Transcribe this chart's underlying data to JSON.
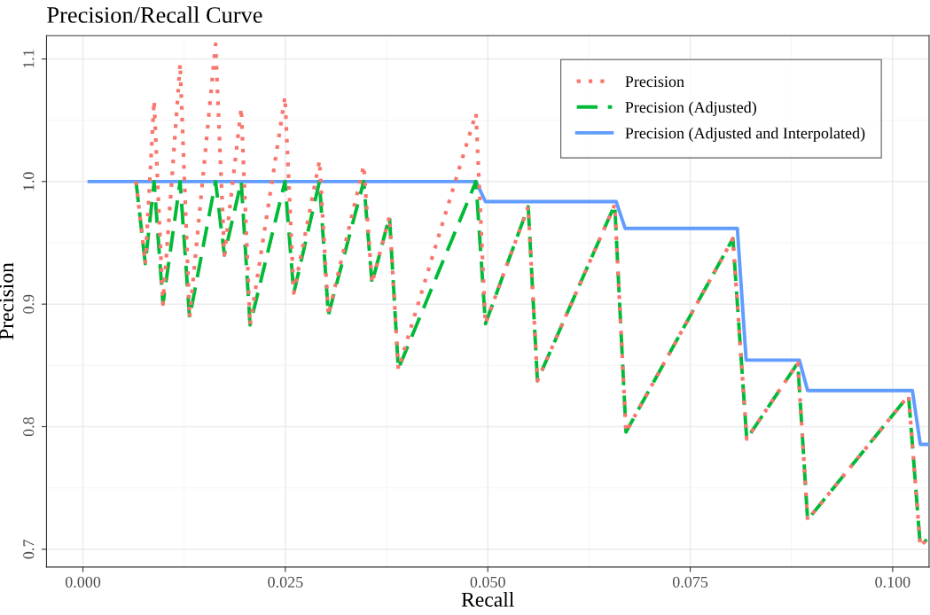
{
  "chart_data": {
    "type": "line",
    "title": "Precision/Recall Curve",
    "xlabel": "Recall",
    "ylabel": "Precision",
    "xlim": [
      -0.0045,
      0.1045
    ],
    "ylim": [
      0.6855,
      1.119
    ],
    "xticks": [
      {
        "value": 0,
        "label": "0.000"
      },
      {
        "value": 0.025,
        "label": "0.025"
      },
      {
        "value": 0.05,
        "label": "0.050"
      },
      {
        "value": 0.075,
        "label": "0.075"
      },
      {
        "value": 0.1,
        "label": "0.100"
      }
    ],
    "yticks": [
      0.7,
      0.8,
      0.9,
      {
        "value": 1,
        "label": "1.0"
      },
      1.1
    ],
    "grid": true,
    "legend": "top right",
    "marker": "none",
    "series": [
      {
        "name": "Precision",
        "color": "#f8766d",
        "line_style": "dotted",
        "x": [
          0.00656,
          0.0077,
          0.00879,
          0.00988,
          0.012,
          0.01317,
          0.01638,
          0.01747,
          0.01955,
          0.02064,
          0.02495,
          0.02604,
          0.02921,
          0.03031,
          0.03468,
          0.0357,
          0.03786,
          0.03895,
          0.04854,
          0.04971,
          0.05499,
          0.05613,
          0.06568,
          0.06707,
          0.08027,
          0.08198,
          0.08829,
          0.0895,
          0.10197,
          0.10342,
          0.1042
        ],
        "values": [
          1.0,
          0.933,
          1.066,
          0.9,
          1.096,
          0.889,
          1.112,
          0.94,
          1.06,
          0.883,
          1.069,
          0.909,
          1.017,
          0.891,
          1.013,
          0.917,
          0.9715,
          0.847,
          1.0556,
          0.884,
          0.9795,
          0.8375,
          0.981,
          0.7957,
          0.9534,
          0.79,
          0.852,
          0.724,
          0.8254,
          0.7022,
          0.708
        ]
      },
      {
        "name": "Precision (Adjusted)",
        "color": "#00ba38",
        "line_style": "dashed",
        "x": [
          0.00656,
          0.0077,
          0.00879,
          0.00988,
          0.012,
          0.01317,
          0.01638,
          0.01747,
          0.01955,
          0.02064,
          0.02495,
          0.02604,
          0.02921,
          0.03031,
          0.03468,
          0.0357,
          0.03786,
          0.03895,
          0.04854,
          0.04971,
          0.05499,
          0.05613,
          0.06568,
          0.06707,
          0.08027,
          0.08198,
          0.08829,
          0.0895,
          0.10197,
          0.10342,
          0.1042
        ],
        "values": [
          1.0,
          0.933,
          1.0,
          0.9,
          1.0,
          0.889,
          1.0,
          0.94,
          1.0,
          0.883,
          1.0,
          0.909,
          1.0,
          0.891,
          1.0,
          0.917,
          0.9715,
          0.847,
          1.0,
          0.884,
          0.9795,
          0.8375,
          0.981,
          0.7957,
          0.9534,
          0.79,
          0.852,
          0.724,
          0.8254,
          0.7022,
          0.708
        ]
      },
      {
        "name": "Precision (Adjusted and Interpolated)",
        "color": "#619cff",
        "line_style": "solid",
        "x": [
          0.00077,
          0.04854,
          0.04971,
          0.06586,
          0.06696,
          0.08082,
          0.08191,
          0.08848,
          0.0895,
          0.10244,
          0.10342,
          0.1045
        ],
        "values": [
          1.0,
          1.0,
          0.9836,
          0.9836,
          0.9618,
          0.9618,
          0.8543,
          0.8543,
          0.8295,
          0.8295,
          0.7855,
          0.7855
        ]
      }
    ]
  }
}
